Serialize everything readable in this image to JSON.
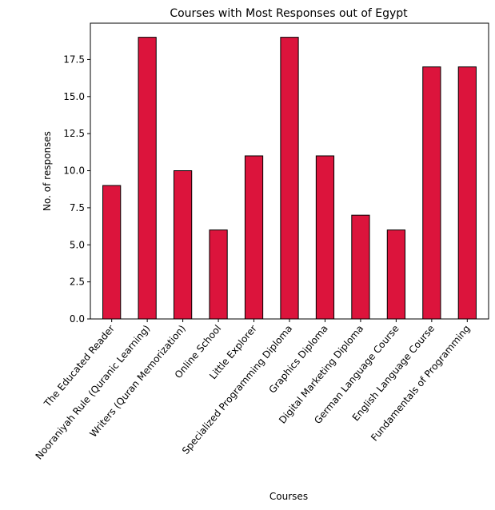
{
  "chart_data": {
    "type": "bar",
    "title": "Courses with Most Responses out of Egypt",
    "xlabel": "Courses",
    "ylabel": "No. of responses",
    "ylim": [
      0,
      19.95
    ],
    "yticks": [
      0.0,
      2.5,
      5.0,
      7.5,
      10.0,
      12.5,
      15.0,
      17.5
    ],
    "ytick_labels": [
      "0.0",
      "2.5",
      "5.0",
      "7.5",
      "10.0",
      "12.5",
      "15.0",
      "17.5"
    ],
    "grid": false,
    "legend": false,
    "bar_color": "#DC143C",
    "edge_color": "#000000",
    "categories": [
      "The Educated Reader",
      "Nooraniyah Rule (Quranic Learning)",
      "Writers (Quran Memorization)",
      "Online School",
      "Little Explorer",
      "Specialized Programming Diploma",
      "Graphics Diploma",
      "Digital Marketing Diploma",
      "German Language Course",
      "English Language Course",
      "Fundamentals of Programming"
    ],
    "values": [
      9,
      19,
      10,
      6,
      11,
      19,
      11,
      7,
      6,
      17,
      17
    ]
  }
}
